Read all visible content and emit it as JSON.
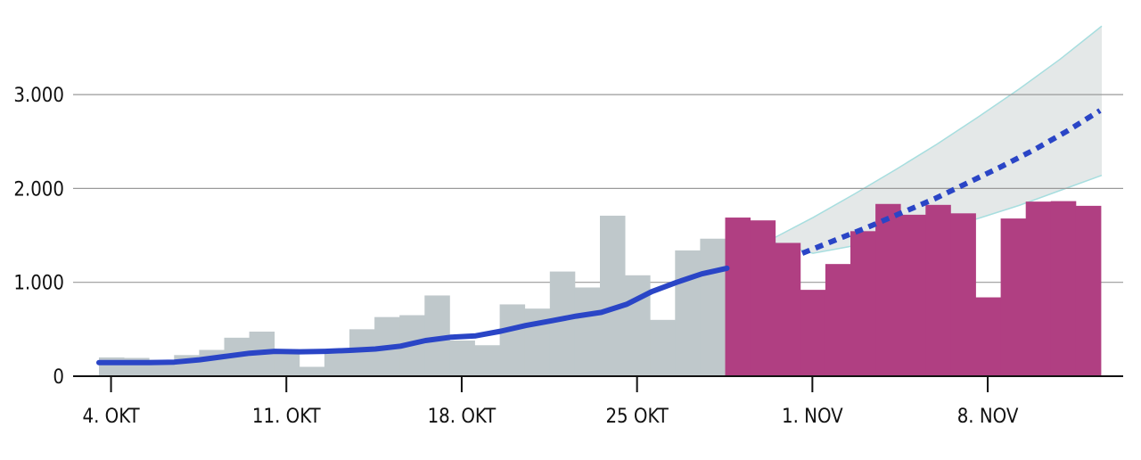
{
  "chart_data": {
    "type": "bar",
    "x_tick_labels": [
      "4. OKT",
      "11. OKT",
      "18. OKT",
      "25 OKT",
      "1. NOV",
      "8. NOV"
    ],
    "y_ticks": [
      {
        "value": 0,
        "label": "0"
      },
      {
        "value": 1000,
        "label": "1.000"
      },
      {
        "value": 2000,
        "label": "2.000"
      },
      {
        "value": 3000,
        "label": "3.000"
      }
    ],
    "ylim": [
      0,
      3000
    ],
    "grid": true,
    "series": [
      {
        "type": "bar",
        "color": "#bfc8cb",
        "values": [
          200,
          195,
          175,
          225,
          280,
          410,
          475,
          265,
          100,
          270,
          500,
          630,
          650,
          860,
          380,
          330,
          765,
          720,
          1115,
          945,
          1710,
          1075,
          600,
          1340,
          1465
        ]
      },
      {
        "type": "bar",
        "color": "#b03f82",
        "values": [
          1690,
          1660,
          1420,
          920,
          1195,
          1545,
          1835,
          1720,
          1825,
          1735,
          840,
          1680,
          1860,
          1865,
          1815
        ]
      },
      {
        "type": "line",
        "color": "#2a45c6",
        "values": [
          145,
          145,
          145,
          150,
          175,
          210,
          245,
          265,
          260,
          265,
          275,
          290,
          320,
          380,
          415,
          430,
          480,
          540,
          590,
          640,
          680,
          765,
          900,
          1000,
          1090,
          1150
        ]
      },
      {
        "type": "line",
        "style": "dotted",
        "color": "#2a45c6",
        "values": [
          1310,
          1450,
          1590,
          1740,
          1890,
          2060,
          2230,
          2410,
          2610,
          2830
        ]
      },
      {
        "type": "area",
        "color": "#e4e8e8",
        "stroke": "#a7dedf",
        "upper": [
          1460,
          1690,
          1940,
          2200,
          2470,
          2760,
          3060,
          3380,
          3730
        ],
        "lower": [
          1430,
          1310,
          1390,
          1475,
          1560,
          1680,
          1820,
          1980,
          2140
        ]
      }
    ]
  }
}
